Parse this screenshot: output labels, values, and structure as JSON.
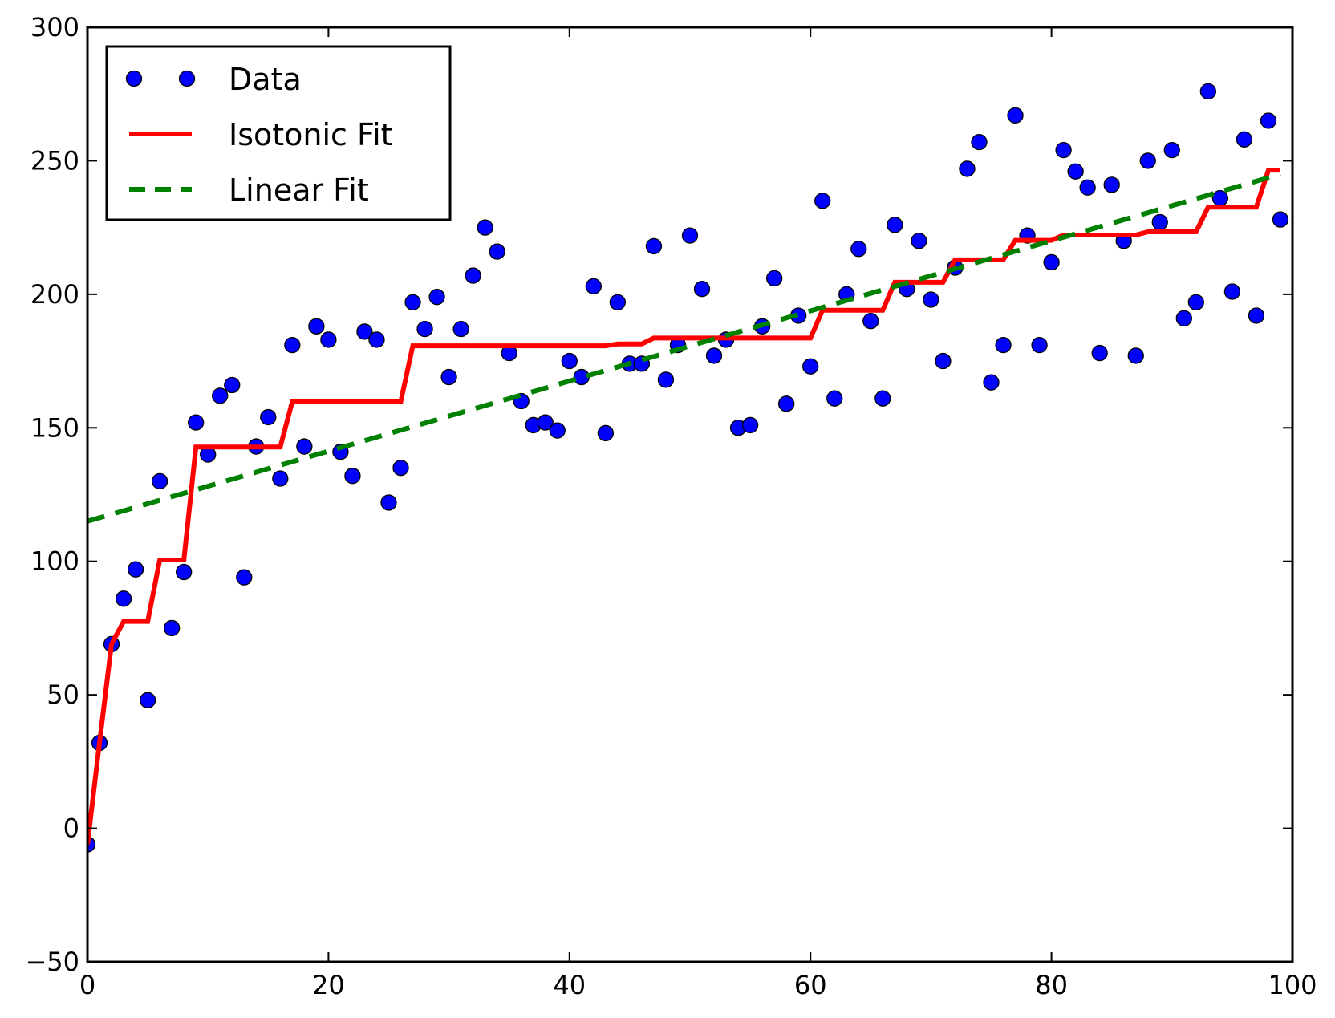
{
  "chart_data": {
    "type": "scatter",
    "title": "",
    "xlabel": "",
    "ylabel": "",
    "xlim": [
      0,
      100
    ],
    "ylim": [
      -50,
      300
    ],
    "x_ticks": [
      0,
      20,
      40,
      60,
      80,
      100
    ],
    "y_ticks": [
      -50,
      0,
      50,
      100,
      150,
      200,
      250,
      300
    ],
    "x_tick_labels": [
      "0",
      "20",
      "40",
      "60",
      "80",
      "100"
    ],
    "y_tick_labels": [
      "−50",
      "0",
      "50",
      "100",
      "150",
      "200",
      "250",
      "300"
    ],
    "grid": false,
    "legend": {
      "position": "top-left",
      "entries": [
        {
          "label": "Data",
          "style": "marker",
          "color": "#0000ff"
        },
        {
          "label": "Isotonic Fit",
          "style": "solid-line",
          "color": "#ff0000"
        },
        {
          "label": "Linear Fit",
          "style": "dashed-line",
          "color": "#008000"
        }
      ]
    },
    "series": [
      {
        "name": "Data",
        "kind": "scatter",
        "color": "#0000ff",
        "x": [
          0,
          1,
          2,
          3,
          4,
          5,
          6,
          7,
          8,
          9,
          10,
          11,
          12,
          13,
          14,
          15,
          16,
          17,
          18,
          19,
          20,
          21,
          22,
          23,
          24,
          25,
          26,
          27,
          28,
          29,
          30,
          31,
          32,
          33,
          34,
          35,
          36,
          37,
          38,
          39,
          40,
          41,
          42,
          43,
          44,
          45,
          46,
          47,
          48,
          49,
          50,
          51,
          52,
          53,
          54,
          55,
          56,
          57,
          58,
          59,
          60,
          61,
          62,
          63,
          64,
          65,
          66,
          67,
          68,
          69,
          70,
          71,
          72,
          73,
          74,
          75,
          76,
          77,
          78,
          79,
          80,
          81,
          82,
          83,
          84,
          85,
          86,
          87,
          88,
          89,
          90,
          91,
          92,
          93,
          94,
          95,
          96,
          97,
          98,
          99
        ],
        "y": [
          -6,
          32,
          69,
          86,
          97,
          48,
          130,
          75,
          96,
          152,
          140,
          162,
          166,
          94,
          143,
          154,
          131,
          181,
          143,
          188,
          183,
          141,
          132,
          186,
          183,
          122,
          135,
          197,
          187,
          199,
          169,
          187,
          207,
          225,
          216,
          178,
          160,
          151,
          152,
          149,
          175,
          169,
          203,
          148,
          197,
          174,
          174,
          218,
          168,
          181,
          222,
          202,
          177,
          183,
          150,
          151,
          188,
          206,
          159,
          192,
          173,
          235,
          161,
          200,
          217,
          190,
          161,
          226,
          202,
          220,
          198,
          175,
          210,
          247,
          257,
          167,
          181,
          267,
          222,
          181,
          212,
          254,
          246,
          240,
          178,
          241,
          220,
          177,
          250,
          227,
          254,
          191,
          197,
          276,
          236,
          201,
          258,
          192,
          265,
          228
        ]
      },
      {
        "name": "Isotonic Fit",
        "kind": "step-line",
        "color": "#ff0000",
        "x": [
          0,
          1,
          2,
          3,
          4,
          5,
          6,
          7,
          8,
          9,
          10,
          11,
          12,
          13,
          14,
          15,
          16,
          17,
          18,
          19,
          20,
          21,
          22,
          23,
          24,
          25,
          26,
          27,
          28,
          29,
          30,
          31,
          32,
          33,
          34,
          35,
          36,
          37,
          38,
          39,
          40,
          41,
          42,
          43,
          44,
          45,
          46,
          47,
          48,
          49,
          50,
          51,
          52,
          53,
          54,
          55,
          56,
          57,
          58,
          59,
          60,
          61,
          62,
          63,
          64,
          65,
          66,
          67,
          68,
          69,
          70,
          71,
          72,
          73,
          74,
          75,
          76,
          77,
          78,
          79,
          80,
          81,
          82,
          83,
          84,
          85,
          86,
          87,
          88,
          89,
          90,
          91,
          92,
          93,
          94,
          95,
          96,
          97,
          98,
          99
        ],
        "y": [
          -6,
          32,
          69,
          77.5,
          77.5,
          77.5,
          100.5,
          100.5,
          100.5,
          142.8,
          142.8,
          142.8,
          142.8,
          142.8,
          142.8,
          142.8,
          142.8,
          159.8,
          159.8,
          159.8,
          159.8,
          159.8,
          159.8,
          159.8,
          159.8,
          159.8,
          159.8,
          180.7,
          180.7,
          180.7,
          180.7,
          180.7,
          180.7,
          180.7,
          180.7,
          180.7,
          180.7,
          180.7,
          180.7,
          180.7,
          180.7,
          180.7,
          180.7,
          180.7,
          181.4,
          181.4,
          181.4,
          183.6,
          183.6,
          183.6,
          183.6,
          183.6,
          183.6,
          183.6,
          183.6,
          183.6,
          183.6,
          183.6,
          183.6,
          183.6,
          183.6,
          194,
          194,
          194,
          194,
          194,
          194,
          204.5,
          204.5,
          204.5,
          204.5,
          204.5,
          212.9,
          212.9,
          212.9,
          212.9,
          212.9,
          220.2,
          220.2,
          220.2,
          220.2,
          222.2,
          222.2,
          222.2,
          222.2,
          222.2,
          222.2,
          222.2,
          223.4,
          223.4,
          223.4,
          223.4,
          223.4,
          232.6,
          232.6,
          232.6,
          232.6,
          232.6,
          246.5,
          246.5
        ]
      },
      {
        "name": "Linear Fit",
        "kind": "dashed-line",
        "color": "#008000",
        "x": [
          0,
          99
        ],
        "y": [
          115,
          245
        ]
      }
    ]
  }
}
